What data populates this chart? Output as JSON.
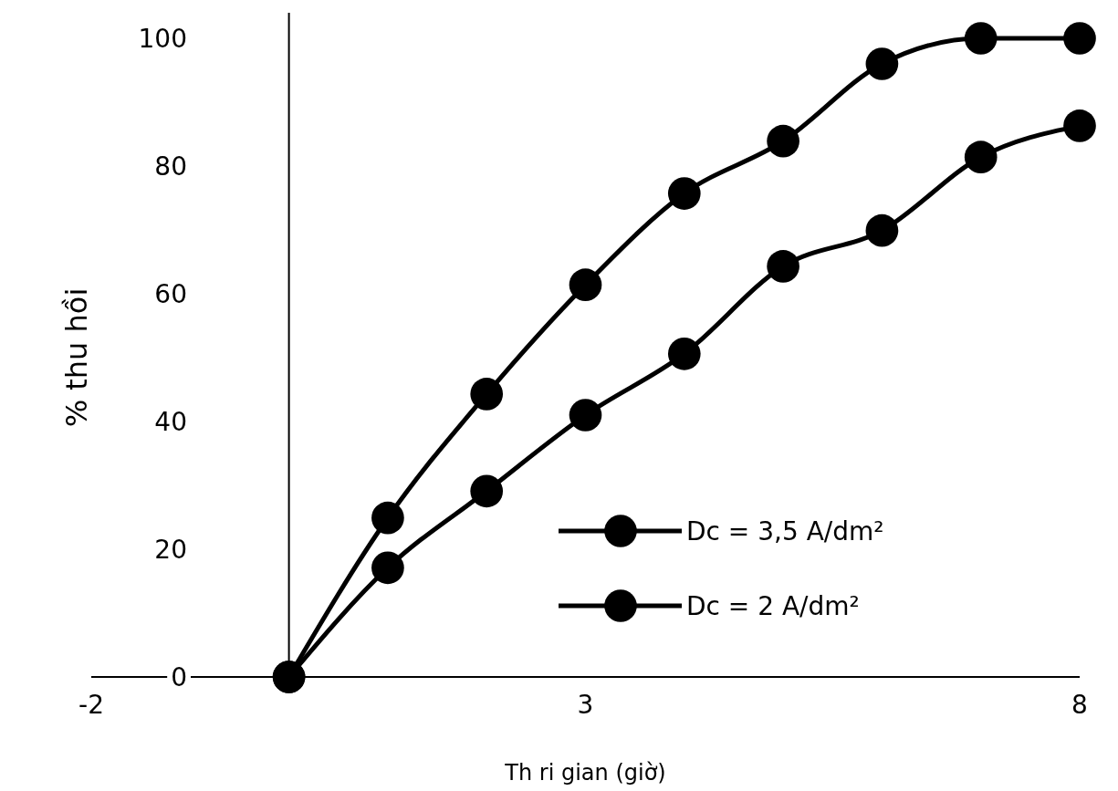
{
  "chart_data": {
    "type": "line",
    "xlabel": "Th ri gian (giờ)",
    "ylabel": "% thu hồi",
    "x": [
      0,
      1,
      2,
      3,
      4,
      5,
      6,
      7,
      8
    ],
    "xlim": [
      -2,
      8
    ],
    "xticks": [
      -2,
      3,
      8
    ],
    "ylim": [
      0,
      104
    ],
    "yticks": [
      0,
      20,
      40,
      60,
      80,
      100
    ],
    "marker": "circle",
    "line_style": "solid",
    "legend": "bottom right",
    "series": [
      {
        "name": "Dc = 3,5 A/dm²",
        "color": "#000000",
        "values": [
          0,
          24.9,
          44.3,
          61.4,
          75.7,
          83.9,
          96,
          100,
          100
        ]
      },
      {
        "name": "Dc = 2 A/dm²",
        "color": "#000000",
        "values": [
          0,
          17.1,
          29.1,
          41,
          50.6,
          64.3,
          69.9,
          81.4,
          86.3
        ]
      }
    ]
  }
}
